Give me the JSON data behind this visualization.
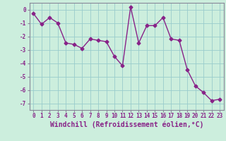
{
  "x": [
    0,
    1,
    2,
    3,
    4,
    5,
    6,
    7,
    8,
    9,
    10,
    11,
    12,
    13,
    14,
    15,
    16,
    17,
    18,
    19,
    20,
    21,
    22,
    23
  ],
  "y": [
    -0.3,
    -1.1,
    -0.6,
    -1.0,
    -2.5,
    -2.6,
    -2.9,
    -2.2,
    -2.3,
    -2.4,
    -3.5,
    -4.2,
    0.2,
    -2.5,
    -1.2,
    -1.2,
    -0.6,
    -2.2,
    -2.3,
    -4.5,
    -5.7,
    -6.2,
    -6.8,
    -6.7
  ],
  "ylim": [
    -7.5,
    0.5
  ],
  "xlim": [
    -0.5,
    23.5
  ],
  "yticks": [
    0,
    -1,
    -2,
    -3,
    -4,
    -5,
    -6,
    -7
  ],
  "xticks": [
    0,
    1,
    2,
    3,
    4,
    5,
    6,
    7,
    8,
    9,
    10,
    11,
    12,
    13,
    14,
    15,
    16,
    17,
    18,
    19,
    20,
    21,
    22,
    23
  ],
  "line_color": "#882288",
  "marker": "D",
  "markersize": 2.5,
  "linewidth": 1.0,
  "bg_color": "#cceedd",
  "grid_color": "#99cccc",
  "xlabel": "Windchill (Refroidissement éolien,°C)",
  "xlabel_fontsize": 7,
  "tick_fontsize": 5.5,
  "spine_color": "#888899",
  "title": ""
}
